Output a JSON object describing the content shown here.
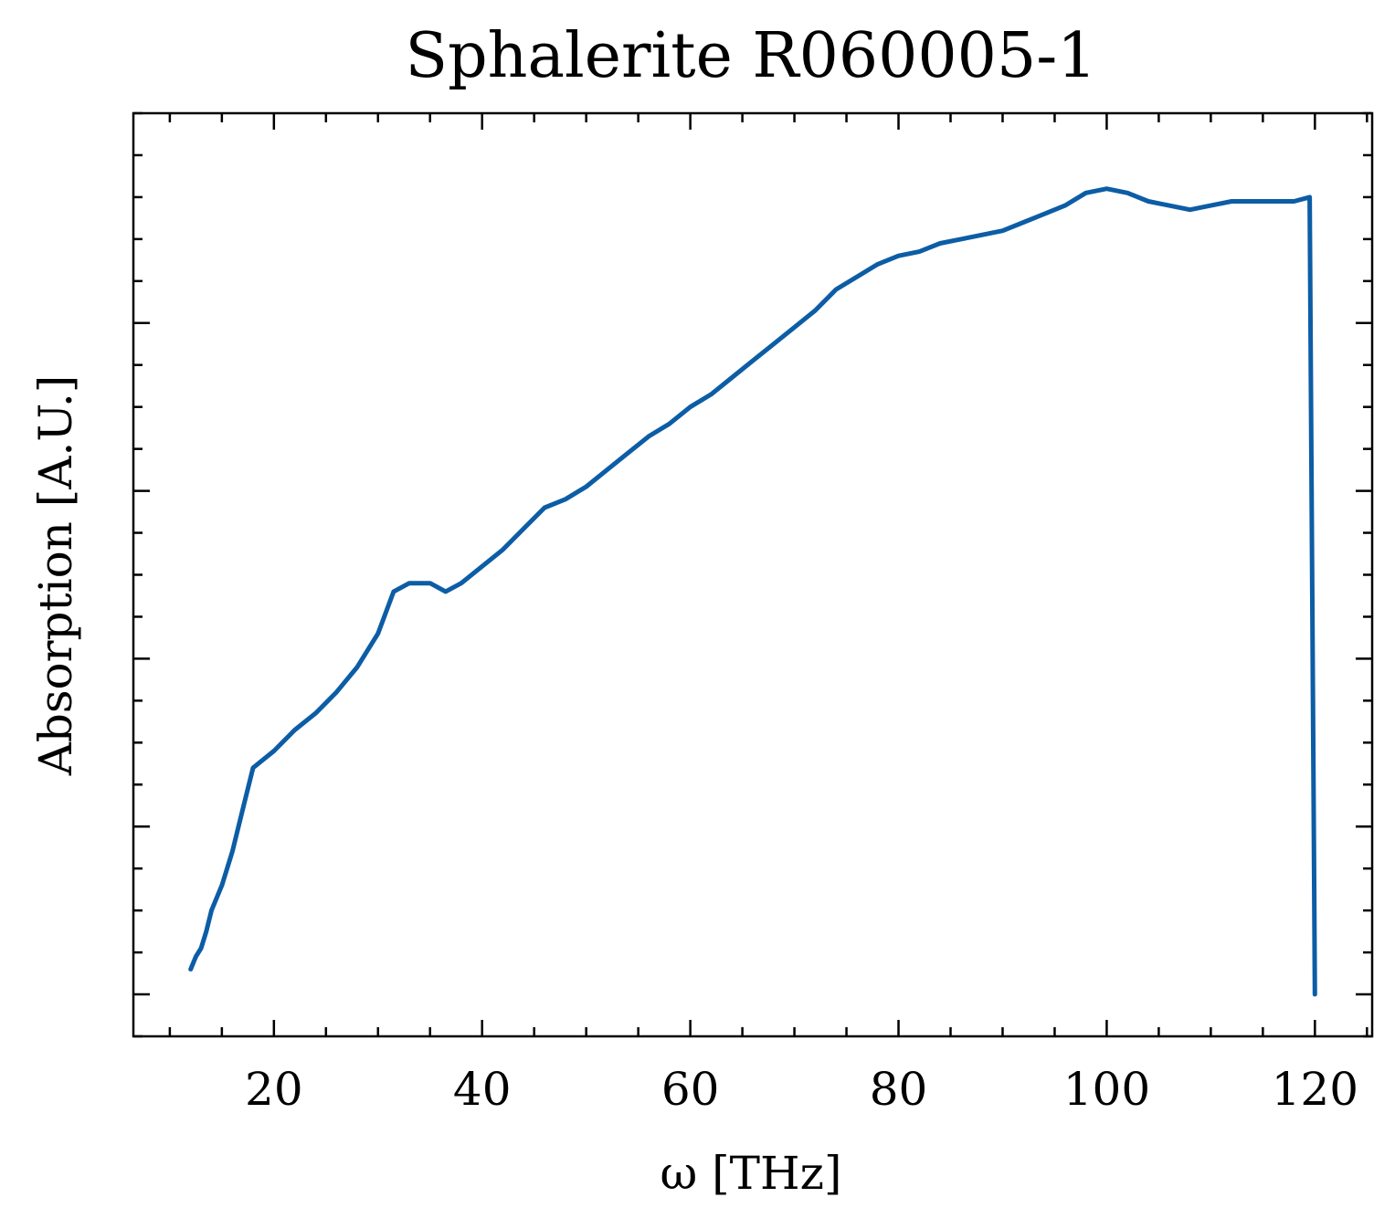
{
  "chart_data": {
    "type": "line",
    "title": "Sphalerite R060005-1",
    "xlabel": "ω [THz]",
    "ylabel": "Absorption [A.U.]",
    "xlim": [
      6.5,
      125.5
    ],
    "ylim": [
      -0.05,
      1.05
    ],
    "x_ticks": [
      20,
      40,
      60,
      80,
      100,
      120
    ],
    "y_ticks_unlabeled": [
      0.0,
      0.2,
      0.4,
      0.6,
      0.8
    ],
    "grid": false,
    "line_color": "#0C5DA5",
    "series": [
      {
        "values": [
          [
            12.0,
            0.03
          ],
          [
            12.5,
            0.045
          ],
          [
            13.0,
            0.055
          ],
          [
            13.5,
            0.075
          ],
          [
            14.0,
            0.1
          ],
          [
            15.0,
            0.13
          ],
          [
            16.0,
            0.17
          ],
          [
            17.0,
            0.22
          ],
          [
            18.0,
            0.27
          ],
          [
            19.0,
            0.28
          ],
          [
            20.0,
            0.29
          ],
          [
            22.0,
            0.315
          ],
          [
            24.0,
            0.335
          ],
          [
            26.0,
            0.36
          ],
          [
            28.0,
            0.39
          ],
          [
            30.0,
            0.43
          ],
          [
            31.5,
            0.48
          ],
          [
            33.0,
            0.49
          ],
          [
            35.0,
            0.49
          ],
          [
            36.5,
            0.48
          ],
          [
            38.0,
            0.49
          ],
          [
            40.0,
            0.51
          ],
          [
            42.0,
            0.53
          ],
          [
            44.0,
            0.555
          ],
          [
            46.0,
            0.58
          ],
          [
            48.0,
            0.59
          ],
          [
            50.0,
            0.605
          ],
          [
            52.0,
            0.625
          ],
          [
            54.0,
            0.645
          ],
          [
            56.0,
            0.665
          ],
          [
            58.0,
            0.68
          ],
          [
            60.0,
            0.7
          ],
          [
            62.0,
            0.715
          ],
          [
            64.0,
            0.735
          ],
          [
            66.0,
            0.755
          ],
          [
            68.0,
            0.775
          ],
          [
            70.0,
            0.795
          ],
          [
            72.0,
            0.815
          ],
          [
            74.0,
            0.84
          ],
          [
            76.0,
            0.855
          ],
          [
            78.0,
            0.87
          ],
          [
            80.0,
            0.88
          ],
          [
            82.0,
            0.885
          ],
          [
            84.0,
            0.895
          ],
          [
            86.0,
            0.9
          ],
          [
            88.0,
            0.905
          ],
          [
            90.0,
            0.91
          ],
          [
            92.0,
            0.92
          ],
          [
            94.0,
            0.93
          ],
          [
            96.0,
            0.94
          ],
          [
            98.0,
            0.955
          ],
          [
            100.0,
            0.96
          ],
          [
            102.0,
            0.955
          ],
          [
            104.0,
            0.945
          ],
          [
            106.0,
            0.94
          ],
          [
            108.0,
            0.935
          ],
          [
            110.0,
            0.94
          ],
          [
            112.0,
            0.945
          ],
          [
            114.0,
            0.945
          ],
          [
            116.0,
            0.945
          ],
          [
            118.0,
            0.945
          ],
          [
            119.5,
            0.95
          ],
          [
            120.0,
            0.0
          ]
        ]
      }
    ]
  }
}
